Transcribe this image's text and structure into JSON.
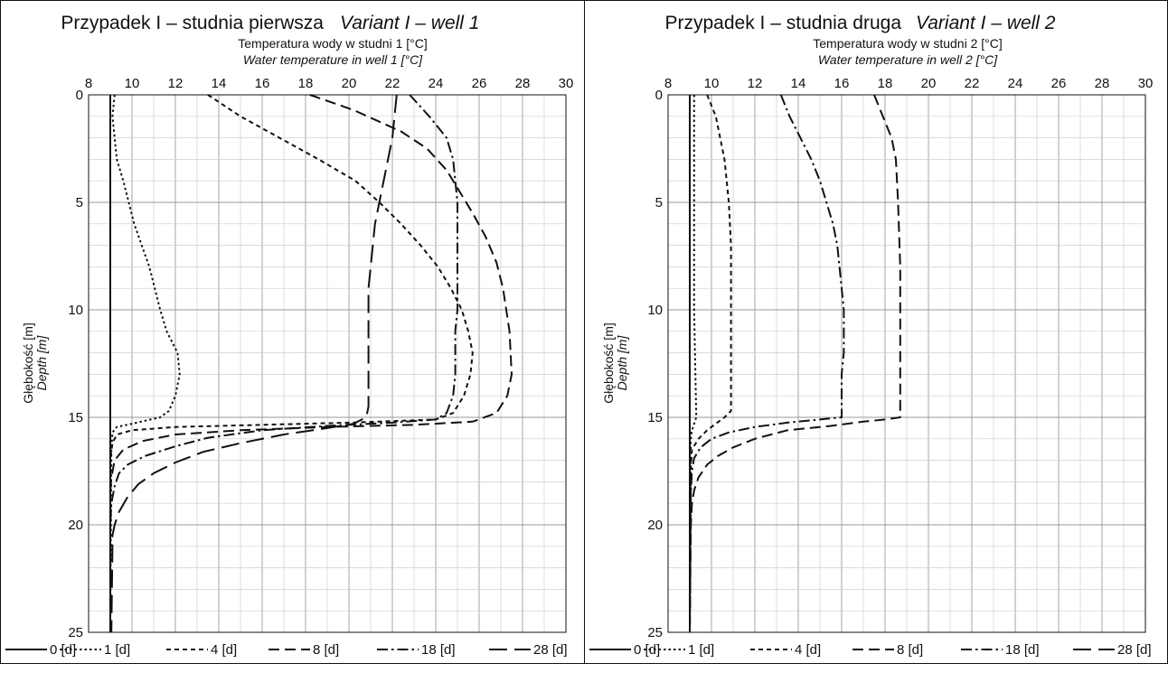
{
  "chart_data": [
    {
      "type": "line",
      "title": "Przypadek I – studnia pierwsza",
      "title_en": "Variant I – well 1",
      "xlabel": "Temperatura wody w studni 1 [°C]",
      "xlabel_en": "Water temperature in well 1 [°C]",
      "ylabel": "Głębokość [m]",
      "ylabel_en": "Depth [m]",
      "xlim": [
        8,
        30
      ],
      "ylim": [
        0,
        25
      ],
      "x_ticks": [
        "8",
        "10",
        "12",
        "14",
        "16",
        "18",
        "20",
        "22",
        "24",
        "26",
        "28",
        "30"
      ],
      "y_ticks": [
        "0",
        "5",
        "10",
        "15",
        "20",
        "25"
      ],
      "grid": true,
      "legend_position": "bottom",
      "series": [
        {
          "name": "0 [d]",
          "points": [
            [
              9.0,
              0
            ],
            [
              9.0,
              5
            ],
            [
              9.0,
              10
            ],
            [
              9.0,
              15
            ],
            [
              9.0,
              20
            ],
            [
              9.0,
              25
            ]
          ]
        },
        {
          "name": "1 [d]",
          "points": [
            [
              9.2,
              0
            ],
            [
              9.1,
              1
            ],
            [
              9.3,
              3
            ],
            [
              9.6,
              4
            ],
            [
              10.1,
              6
            ],
            [
              10.8,
              8
            ],
            [
              11.3,
              10
            ],
            [
              11.6,
              11
            ],
            [
              12.1,
              12
            ],
            [
              12.2,
              13
            ],
            [
              12.0,
              14
            ],
            [
              11.7,
              14.7
            ],
            [
              11.3,
              15
            ],
            [
              10.0,
              15.3
            ],
            [
              9.3,
              15.45
            ],
            [
              9.1,
              15.7
            ],
            [
              9.05,
              16.5
            ],
            [
              9.0,
              25
            ]
          ]
        },
        {
          "name": "4 [d]",
          "points": [
            [
              13.5,
              0
            ],
            [
              15.0,
              1
            ],
            [
              16.8,
              2
            ],
            [
              18.6,
              3
            ],
            [
              20.3,
              4
            ],
            [
              21.4,
              5
            ],
            [
              22.4,
              6
            ],
            [
              23.3,
              7
            ],
            [
              24.1,
              8
            ],
            [
              24.7,
              9
            ],
            [
              25.2,
              10
            ],
            [
              25.5,
              11
            ],
            [
              25.7,
              12
            ],
            [
              25.6,
              13
            ],
            [
              25.3,
              14
            ],
            [
              24.8,
              14.8
            ],
            [
              24.0,
              15.1
            ],
            [
              20.0,
              15.25
            ],
            [
              12.0,
              15.45
            ],
            [
              10.0,
              15.6
            ],
            [
              9.3,
              15.8
            ],
            [
              9.1,
              16.2
            ],
            [
              9.0,
              17
            ],
            [
              9.0,
              25
            ]
          ]
        },
        {
          "name": "8 [d]",
          "points": [
            [
              18.2,
              0
            ],
            [
              20.2,
              0.7
            ],
            [
              22.4,
              1.7
            ],
            [
              23.6,
              2.5
            ],
            [
              24.5,
              3.5
            ],
            [
              25.1,
              4.5
            ],
            [
              25.7,
              5.5
            ],
            [
              26.3,
              6.6
            ],
            [
              26.8,
              7.8
            ],
            [
              27.1,
              9
            ],
            [
              27.4,
              11
            ],
            [
              27.5,
              13
            ],
            [
              27.3,
              14
            ],
            [
              26.8,
              14.8
            ],
            [
              25.7,
              15.2
            ],
            [
              23.0,
              15.35
            ],
            [
              19.0,
              15.45
            ],
            [
              15.0,
              15.6
            ],
            [
              12.0,
              15.8
            ],
            [
              10.5,
              16.1
            ],
            [
              9.6,
              16.5
            ],
            [
              9.2,
              17
            ],
            [
              9.05,
              17.8
            ],
            [
              9.0,
              18.5
            ],
            [
              9.0,
              25
            ]
          ]
        },
        {
          "name": "18 [d]",
          "points": [
            [
              22.8,
              0
            ],
            [
              23.7,
              1
            ],
            [
              24.5,
              2
            ],
            [
              24.8,
              3
            ],
            [
              24.9,
              4
            ],
            [
              25.0,
              5
            ],
            [
              25.0,
              8
            ],
            [
              25.0,
              10
            ],
            [
              24.9,
              11
            ],
            [
              24.9,
              12
            ],
            [
              24.9,
              13
            ],
            [
              24.8,
              14
            ],
            [
              24.5,
              14.8
            ],
            [
              24.0,
              15.1
            ],
            [
              22.0,
              15.25
            ],
            [
              19.0,
              15.4
            ],
            [
              16.0,
              15.6
            ],
            [
              13.5,
              15.95
            ],
            [
              12.0,
              16.35
            ],
            [
              10.6,
              16.8
            ],
            [
              9.8,
              17.2
            ],
            [
              9.4,
              17.6
            ],
            [
              9.2,
              18.2
            ],
            [
              9.05,
              19
            ],
            [
              9.0,
              20
            ],
            [
              9.0,
              25
            ]
          ]
        },
        {
          "name": "28 [d]",
          "points": [
            [
              22.2,
              0
            ],
            [
              22.1,
              1
            ],
            [
              22.0,
              2
            ],
            [
              21.8,
              3
            ],
            [
              21.6,
              4
            ],
            [
              21.4,
              5
            ],
            [
              21.2,
              6
            ],
            [
              21.1,
              7
            ],
            [
              21.0,
              8
            ],
            [
              20.9,
              9
            ],
            [
              20.9,
              10
            ],
            [
              20.9,
              12
            ],
            [
              20.9,
              13
            ],
            [
              20.9,
              14.5
            ],
            [
              20.8,
              15
            ],
            [
              20.2,
              15.3
            ],
            [
              19.0,
              15.5
            ],
            [
              17.0,
              15.8
            ],
            [
              15.0,
              16.2
            ],
            [
              13.3,
              16.6
            ],
            [
              12.0,
              17.1
            ],
            [
              11.0,
              17.6
            ],
            [
              10.3,
              18.1
            ],
            [
              9.8,
              18.7
            ],
            [
              9.4,
              19.4
            ],
            [
              9.2,
              20
            ],
            [
              9.1,
              20.5
            ],
            [
              9.1,
              21
            ],
            [
              9.05,
              25
            ]
          ]
        }
      ]
    },
    {
      "type": "line",
      "title": "Przypadek I – studnia druga",
      "title_en": "Variant I – well 2",
      "xlabel": "Temperatura wody w studni 2 [°C]",
      "xlabel_en": "Water temperature in well 2 [°C]",
      "ylabel": "Głębokość [m]",
      "ylabel_en": "Depth [m]",
      "xlim": [
        8,
        30
      ],
      "ylim": [
        0,
        25
      ],
      "x_ticks": [
        "8",
        "10",
        "12",
        "14",
        "16",
        "18",
        "20",
        "22",
        "24",
        "26",
        "28",
        "30"
      ],
      "y_ticks": [
        "0",
        "5",
        "10",
        "15",
        "20",
        "25"
      ],
      "grid": true,
      "legend_position": "bottom",
      "series": [
        {
          "name": "0 [d]",
          "points": [
            [
              9.0,
              0
            ],
            [
              9.0,
              5
            ],
            [
              9.0,
              10
            ],
            [
              9.0,
              15
            ],
            [
              9.0,
              20
            ],
            [
              9.0,
              25
            ]
          ]
        },
        {
          "name": "1 [d]",
          "points": [
            [
              9.2,
              0
            ],
            [
              9.2,
              5
            ],
            [
              9.2,
              10
            ],
            [
              9.3,
              15
            ],
            [
              9.2,
              15.3
            ],
            [
              9.1,
              15.6
            ],
            [
              9.05,
              16
            ],
            [
              9.0,
              25
            ]
          ]
        },
        {
          "name": "4 [d]",
          "points": [
            [
              9.8,
              0
            ],
            [
              10.2,
              1
            ],
            [
              10.6,
              3
            ],
            [
              10.8,
              5
            ],
            [
              10.9,
              7
            ],
            [
              10.9,
              10
            ],
            [
              10.9,
              13
            ],
            [
              10.9,
              14.7
            ],
            [
              10.6,
              15.0
            ],
            [
              10.2,
              15.3
            ],
            [
              9.8,
              15.6
            ],
            [
              9.4,
              16.0
            ],
            [
              9.1,
              16.5
            ],
            [
              9.05,
              17.3
            ],
            [
              9.0,
              25
            ]
          ]
        },
        {
          "name": "8 [d]",
          "points": [
            [
              17.5,
              0
            ],
            [
              17.9,
              1
            ],
            [
              18.3,
              2
            ],
            [
              18.5,
              3
            ],
            [
              18.6,
              5
            ],
            [
              18.7,
              8
            ],
            [
              18.7,
              10
            ],
            [
              18.7,
              12
            ],
            [
              18.7,
              14
            ],
            [
              18.7,
              15
            ],
            [
              18.0,
              15.1
            ],
            [
              17.0,
              15.2
            ],
            [
              15.5,
              15.4
            ],
            [
              13.5,
              15.6
            ],
            [
              12.0,
              16.0
            ],
            [
              11.0,
              16.4
            ],
            [
              10.3,
              16.8
            ],
            [
              9.8,
              17.2
            ],
            [
              9.4,
              17.8
            ],
            [
              9.2,
              18.4
            ],
            [
              9.1,
              19.0
            ],
            [
              9.05,
              20
            ],
            [
              9.0,
              25
            ]
          ]
        },
        {
          "name": "18 [d]",
          "points": [
            [
              13.2,
              0
            ],
            [
              13.6,
              1
            ],
            [
              14.1,
              2
            ],
            [
              14.6,
              3
            ],
            [
              15.0,
              4
            ],
            [
              15.3,
              5
            ],
            [
              15.6,
              6
            ],
            [
              15.8,
              7
            ],
            [
              15.9,
              8
            ],
            [
              16.0,
              9
            ],
            [
              16.1,
              10
            ],
            [
              16.1,
              11
            ],
            [
              16.1,
              12
            ],
            [
              16.0,
              13
            ],
            [
              16.0,
              14
            ],
            [
              16.0,
              15
            ],
            [
              15.0,
              15.1
            ],
            [
              13.5,
              15.25
            ],
            [
              12.0,
              15.45
            ],
            [
              10.8,
              15.7
            ],
            [
              10.0,
              16.0
            ],
            [
              9.5,
              16.4
            ],
            [
              9.2,
              16.9
            ],
            [
              9.1,
              17.5
            ],
            [
              9.05,
              18.5
            ],
            [
              9.0,
              25
            ]
          ]
        },
        {
          "name": "28 [d]",
          "points": [
            [
              9.0,
              0
            ],
            [
              9.0,
              10
            ],
            [
              9.0,
              15
            ],
            [
              9.0,
              25
            ]
          ]
        }
      ]
    }
  ]
}
